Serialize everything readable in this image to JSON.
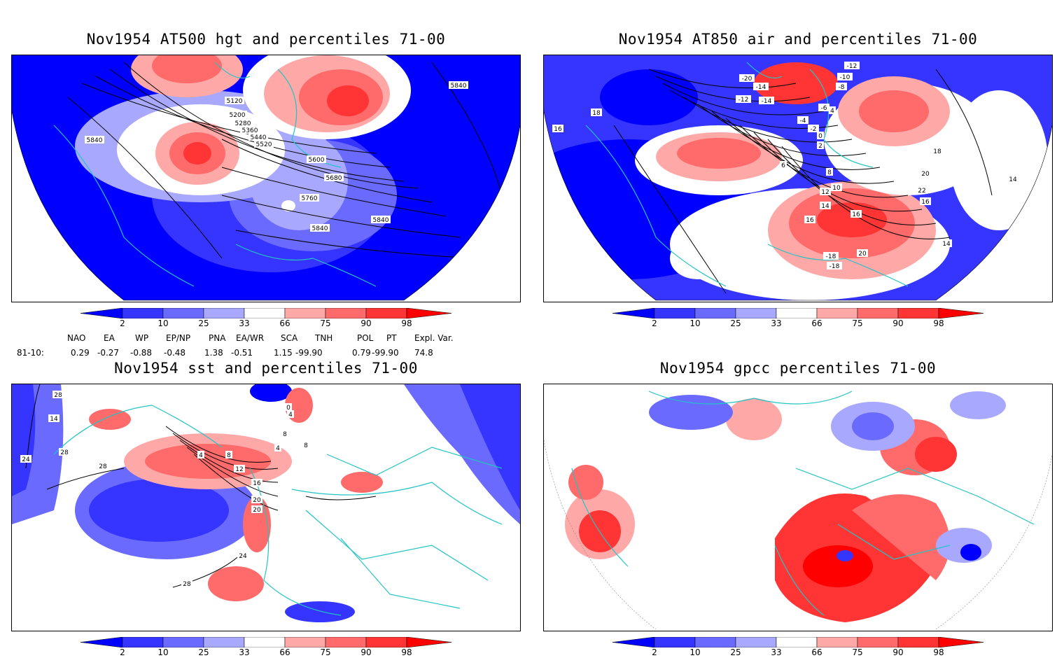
{
  "panels": [
    {
      "title": "Nov1954 AT500 hgt and percentiles 71-00",
      "contour_labels": [
        "5120",
        "5200",
        "5280",
        "5360",
        "5440",
        "5520",
        "5600",
        "5680",
        "5760",
        "5840",
        "5840",
        "5840",
        "5840"
      ]
    },
    {
      "title": "Nov1954 AT850 air and percentiles 71-00",
      "contour_labels": [
        "-20",
        "-14",
        "-12",
        "-14",
        "-12",
        "-10",
        "-8",
        "-6",
        "-4",
        "-2",
        "0",
        "2",
        "4",
        "6",
        "8",
        "10",
        "12",
        "14",
        "16",
        "16",
        "18",
        "20",
        "22",
        "14",
        "16",
        "18",
        "20",
        "-18",
        "-18",
        "16",
        "14"
      ]
    },
    {
      "title": "Nov1954 sst and percentiles 71-00",
      "contour_labels": [
        "28",
        "14",
        "24",
        "28",
        "28",
        "4",
        "8",
        "12",
        "16",
        "20",
        "20",
        "24",
        "28",
        "4",
        "8",
        "0",
        "4",
        "8"
      ]
    },
    {
      "title": "Nov1954 gpcc percentiles 71-00",
      "contour_labels": []
    }
  ],
  "colorbar": {
    "ticks": [
      "2",
      "10",
      "25",
      "33",
      "66",
      "75",
      "90",
      "98"
    ],
    "colors": {
      "below2": "#0000ff",
      "c2_10": "#3535ff",
      "c10_25": "#6a6aff",
      "c25_33": "#a8a8ff",
      "c33_66": "#ffffff",
      "c66_75": "#ffa8a8",
      "c75_90": "#ff6a6a",
      "c90_98": "#ff3535",
      "above98": "#ff0000"
    }
  },
  "indices": {
    "headers": [
      "NAO",
      "EA",
      "WP",
      "EP/NP",
      "PNA",
      "EA/WR",
      "SCA",
      "TNH",
      "POL",
      "PT",
      "Expl. Var."
    ],
    "row_label": "81-10:",
    "values": [
      "0.29",
      "-0.27",
      "-0.88",
      "-0.48",
      "1.38",
      "-0.51",
      "1.15",
      "-99.90",
      "0.79",
      "-99.90",
      "74.8"
    ]
  },
  "colors": {
    "coastline": "#22c4c4",
    "contour": "#000000",
    "frame": "#000000"
  }
}
